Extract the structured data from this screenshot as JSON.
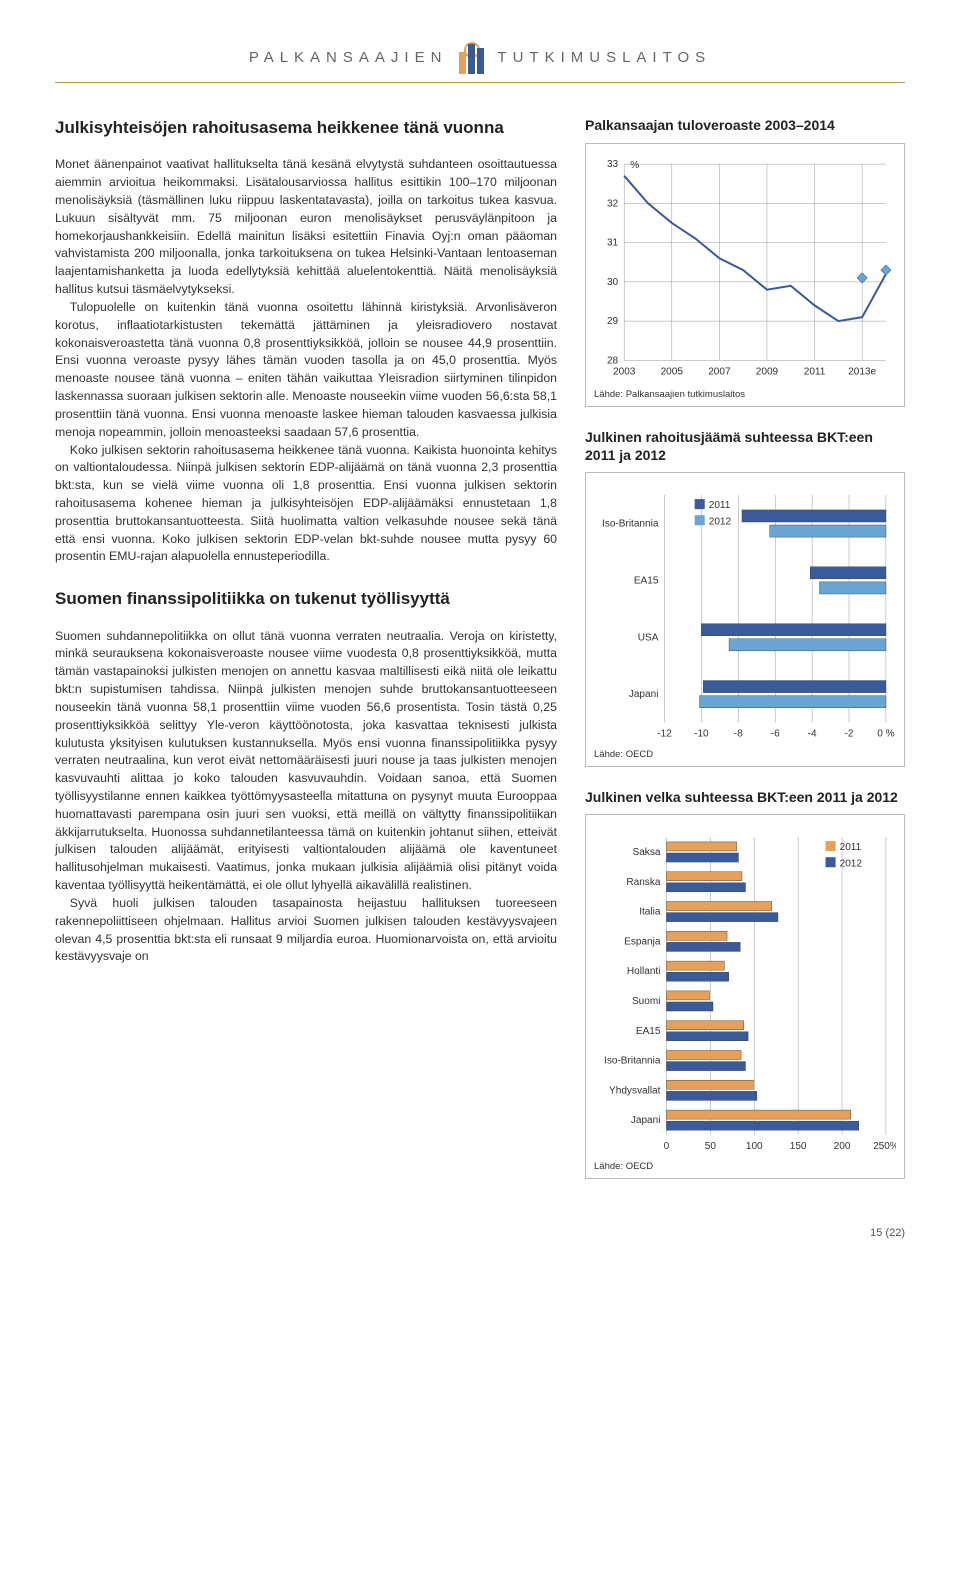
{
  "header": {
    "left": "PALKANSAAJIEN",
    "right": "TUTKIMUSLAITOS"
  },
  "left_col": {
    "title1": "Julkisyhteisöjen rahoitusasema heikkenee tänä vuonna",
    "para1": "Monet äänenpainot vaativat hallitukselta tänä kesänä elvytystä suhdanteen osoittautuessa aiemmin arvioitua heikommaksi. Lisätalousarviossa hallitus esittikin 100–170 miljoonan menolisäyksiä (täsmällinen luku riippuu laskentatavasta), joilla on tarkoitus tukea kasvua. Lukuun sisältyvät mm. 75 miljoonan euron menolisäykset perusväylänpitoon ja homekorjaushankkeisiin. Edellä mainitun lisäksi esitettiin Finavia Oyj:n oman pääoman vahvistamista 200 miljoonalla, jonka tarkoituksena on tukea Helsinki-Vantaan lentoaseman laajentamishanketta ja luoda edellytyksiä kehittää aluelentokenttiä. Näitä menolisäyksiä hallitus kutsui täsmäelvytykseksi.",
    "para2": "Tulopuolelle on kuitenkin tänä vuonna osoitettu lähinnä kiristyksiä. Arvonlisäveron korotus, inflaatiotarkistusten tekemättä jättäminen ja yleisradiovero nostavat kokonaisveroastetta tänä vuonna 0,8 prosenttiyksikköä, jolloin se nousee 44,9 prosenttiin. Ensi vuonna veroaste pysyy lähes tämän vuoden tasolla ja on 45,0 prosenttia. Myös menoaste nousee tänä vuonna – eniten tähän vaikuttaa Yleisradion siirtyminen tilinpidon laskennassa suoraan julkisen sektorin alle. Menoaste nouseekin viime vuoden 56,6:sta 58,1 prosenttiin tänä vuonna. Ensi vuonna menoaste laskee hieman talouden kasvaessa julkisia menoja nopeammin, jolloin menoasteeksi saadaan 57,6 prosenttia.",
    "para3": "Koko julkisen sektorin rahoitusasema heikkenee tänä vuonna. Kaikista huonointa kehitys on valtiontaloudessa. Niinpä julkisen sektorin EDP-alijäämä on tänä vuonna 2,3 prosenttia bkt:sta, kun se vielä viime vuonna oli 1,8 prosenttia. Ensi vuonna julkisen sektorin rahoitusasema kohenee hieman ja julkisyhteisöjen EDP-alijäämäksi ennustetaan 1,8 prosenttia bruttokansantuotteesta. Siitä huolimatta valtion velkasuhde nousee sekä tänä että ensi vuonna. Koko julkisen sektorin EDP-velan bkt-suhde nousee mutta pysyy 60 prosentin EMU-rajan alapuolella ennusteperiodilla.",
    "title2": "Suomen finanssipolitiikka on tukenut työllisyyttä",
    "para4": "Suomen suhdannepolitiikka on ollut tänä vuonna verraten neutraalia. Veroja on kiristetty, minkä seurauksena kokonaisveroaste nousee viime vuodesta 0,8 prosenttiyksikköä, mutta tämän vastapainoksi julkisten menojen on annettu kasvaa maltillisesti eikä niitä ole leikattu bkt:n supistumisen tahdissa. Niinpä julkisten menojen suhde bruttokansantuotteeseen nouseekin tänä vuonna 58,1 prosenttiin viime vuoden 56,6 prosentista. Tosin tästä 0,25 prosenttiyksikköä selittyy Yle-veron käyttöönotosta, joka kasvattaa teknisesti julkista kulutusta yksityisen kulutuksen kustannuksella. Myös ensi vuonna finanssipolitiikka pysyy verraten neutraalina, kun verot eivät nettomääräisesti juuri nouse ja taas julkisten menojen kasvuvauhti alittaa jo koko talouden kasvuvauhdin. Voidaan sanoa, että Suomen työllisyystilanne ennen kaikkea työttömyysasteella mitattuna on pysynyt muuta Eurooppaa huomattavasti parempana osin juuri sen vuoksi, että meillä on vältytty finanssipolitiikan äkkijarrutukselta. Huonossa suhdannetilanteessa tämä on kuitenkin johtanut siihen, etteivät julkisen talouden alijäämät, erityisesti valtiontalouden alijäämä ole kaventuneet hallitusohjelman mukaisesti. Vaatimus, jonka mukaan julkisia alijäämiä olisi pitänyt voida kaventaa työllisyyttä heikentämättä, ei ole ollut lyhyellä aikavälillä realistinen.",
    "para5": "Syvä huoli julkisen talouden tasapainosta heijastuu hallituksen tuoreeseen rakennepoliittiseen ohjelmaan. Hallitus arvioi Suomen julkisen talouden kestävyysvajeen olevan 4,5 prosenttia bkt:sta eli runsaat 9 miljardia euroa. Huomionarvoista on, että arvioitu kestävyysvaje on"
  },
  "chart1": {
    "title": "Palkansaajan tuloveroaste 2003–2014",
    "type": "line",
    "ylabel": "%",
    "x": [
      2003,
      2004,
      2005,
      2006,
      2007,
      2008,
      2009,
      2010,
      2011,
      2012,
      2013,
      2014
    ],
    "y": [
      32.7,
      32.0,
      31.5,
      31.1,
      30.6,
      30.3,
      29.8,
      29.9,
      29.4,
      29.0,
      29.1,
      30.2
    ],
    "forecast_x": [
      2013,
      2014
    ],
    "forecast_y": [
      30.1,
      30.3
    ],
    "ylim": [
      28,
      33
    ],
    "yticks": [
      28,
      29,
      30,
      31,
      32,
      33
    ],
    "xticks": [
      2003,
      2005,
      2007,
      2009,
      2011,
      "2013e"
    ],
    "line_color": "#3b5a9a",
    "line_width": 2,
    "marker_color": "#6aa6d4",
    "grid_color": "#999999",
    "background": "#ffffff",
    "source": "Lähde: Palkansaajien tutkimuslaitos"
  },
  "chart2": {
    "title": "Julkinen rahoitusjäämä suhteessa BKT:een 2011 ja 2012",
    "type": "bar-horizontal",
    "categories": [
      "Iso-Britannia",
      "EA15",
      "USA",
      "Japani"
    ],
    "series": [
      {
        "name": "2011",
        "color": "#3b5a9a",
        "values": [
          -7.8,
          -4.1,
          -10.0,
          -9.9
        ]
      },
      {
        "name": "2012",
        "color": "#6aa6d4",
        "values": [
          -6.3,
          -3.6,
          -8.5,
          -10.1
        ]
      }
    ],
    "xlim": [
      -12,
      0
    ],
    "xticks": [
      -12,
      -10,
      -8,
      -6,
      -4,
      -2,
      "0 %"
    ],
    "grid_color": "#999999",
    "source": "Lähde: OECD"
  },
  "chart3": {
    "title": "Julkinen velka suhteessa BKT:een 2011 ja 2012",
    "type": "bar-horizontal",
    "categories": [
      "Saksa",
      "Ranska",
      "Italia",
      "Espanja",
      "Hollanti",
      "Suomi",
      "EA15",
      "Iso-Britannia",
      "Yhdysvallat",
      "Japani"
    ],
    "series": [
      {
        "name": "2011",
        "color": "#e6a05a",
        "values": [
          80,
          86,
          120,
          69,
          66,
          49,
          88,
          85,
          99,
          210
        ]
      },
      {
        "name": "2012",
        "color": "#3b5a9a",
        "values": [
          82,
          90,
          127,
          84,
          71,
          53,
          93,
          90,
          103,
          219
        ]
      }
    ],
    "xlim": [
      0,
      250
    ],
    "xticks": [
      0,
      50,
      100,
      150,
      200,
      "250%"
    ],
    "grid_color": "#999999",
    "source": "Lähde: OECD"
  },
  "page_number": "15 (22)"
}
